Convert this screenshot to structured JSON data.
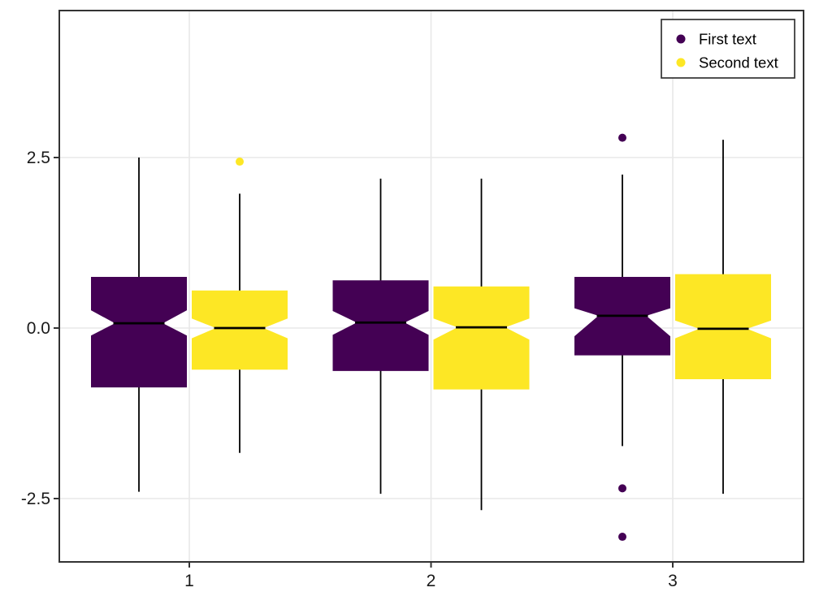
{
  "chart_data": {
    "type": "boxplot",
    "title": "",
    "xlabel": "",
    "ylabel": "",
    "categories": [
      "1",
      "2",
      "3"
    ],
    "x_tick_labels": [
      "1",
      "2",
      "3"
    ],
    "y_tick_labels": [
      "2.5",
      "0.0",
      "-2.5"
    ],
    "y_tick_values": [
      2.5,
      0.0,
      -2.5
    ],
    "y_range": [
      -3.4,
      4.65
    ],
    "grid": "major-only",
    "notched": true,
    "legend": {
      "position": "top-right",
      "entries": [
        {
          "label": "First text",
          "color": "#440154"
        },
        {
          "label": "Second text",
          "color": "#FDE725"
        }
      ]
    },
    "series": [
      {
        "name": "First text",
        "color": "#440154",
        "boxes": [
          {
            "category": "1",
            "whisker_low": -2.4,
            "q1": -0.87,
            "median": 0.07,
            "q3": 0.75,
            "whisker_high": 2.5,
            "notch_low": -0.11,
            "notch_high": 0.26,
            "outliers": []
          },
          {
            "category": "2",
            "whisker_low": -2.43,
            "q1": -0.63,
            "median": 0.08,
            "q3": 0.7,
            "whisker_high": 2.19,
            "notch_low": -0.1,
            "notch_high": 0.25,
            "outliers": []
          },
          {
            "category": "3",
            "whisker_low": -1.73,
            "q1": -0.4,
            "median": 0.18,
            "q3": 0.75,
            "whisker_high": 2.25,
            "notch_low": -0.12,
            "notch_high": 0.29,
            "outliers": [
              2.79,
              -2.35,
              -3.06
            ]
          }
        ]
      },
      {
        "name": "Second text",
        "color": "#FDE725",
        "boxes": [
          {
            "category": "1",
            "whisker_low": -1.83,
            "q1": -0.61,
            "median": 0.0,
            "q3": 0.55,
            "whisker_high": 1.97,
            "notch_low": -0.15,
            "notch_high": 0.14,
            "outliers": [
              2.44
            ]
          },
          {
            "category": "2",
            "whisker_low": -2.67,
            "q1": -0.9,
            "median": 0.01,
            "q3": 0.61,
            "whisker_high": 2.19,
            "notch_low": -0.17,
            "notch_high": 0.14,
            "outliers": []
          },
          {
            "category": "3",
            "whisker_low": -2.43,
            "q1": -0.75,
            "median": -0.01,
            "q3": 0.79,
            "whisker_high": 2.76,
            "notch_low": -0.15,
            "notch_high": 0.11,
            "outliers": []
          }
        ]
      }
    ],
    "style_colors": {
      "panel_border": "#333333",
      "grid_line": "#e8e8e8",
      "tick_mark": "#333333",
      "tick_label": "#1a1a1a",
      "median_line": "#000000",
      "whisker_line": "#000000",
      "legend_border": "#333333",
      "legend_background": "#ffffff",
      "background": "#ffffff"
    }
  }
}
